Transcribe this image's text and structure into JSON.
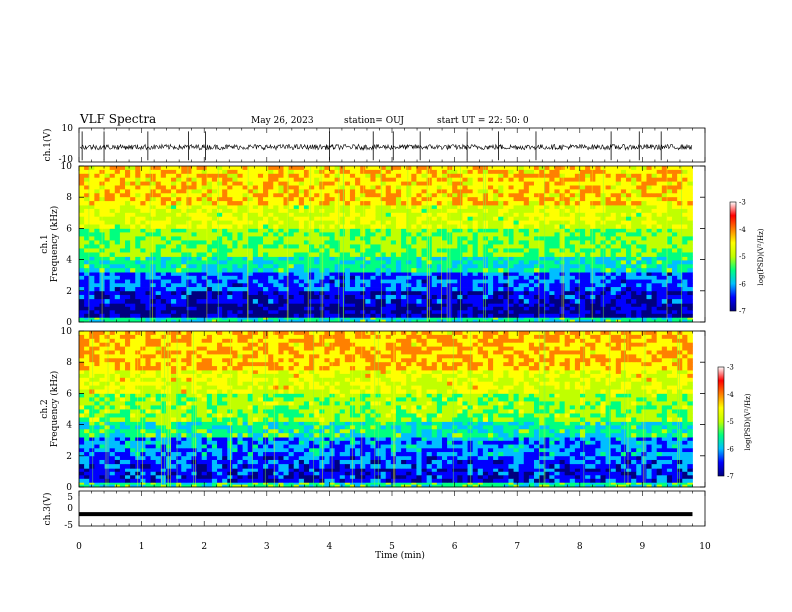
{
  "header": {
    "title": "VLF Spectra",
    "date": "May 26, 2023",
    "station": "station= OUJ",
    "start": "start  UT =   22: 50: 0"
  },
  "chart_data": [
    {
      "type": "line",
      "panel": "ch1-waveform",
      "ylabel": "ch.1(V)",
      "ylim": [
        -10,
        10
      ],
      "y_ticks": [
        "10",
        "-10"
      ],
      "x": [
        0,
        0.5,
        1,
        1.5,
        2,
        2.5,
        3,
        3.5,
        4,
        4.5,
        5,
        5.5,
        6,
        6.5,
        7,
        7.5,
        8,
        8.5,
        9,
        9.5,
        9.8
      ],
      "values": [
        -1,
        -1.5,
        -1,
        -1.2,
        -1,
        -1.4,
        -1,
        -1.1,
        -1.3,
        -1,
        -1.5,
        -1,
        -1.2,
        -1,
        -1.3,
        -1.1,
        -1,
        -1.4,
        -1,
        -1.2,
        -1
      ],
      "bursts": [
        0.05,
        0.4,
        1.1,
        1.75,
        2.02,
        4.0,
        4.7,
        5.02,
        5.45,
        6.2,
        6.7,
        7.3,
        8.5,
        8.95,
        9.3
      ],
      "xlim": [
        0,
        10
      ]
    },
    {
      "type": "heatmap",
      "panel": "ch1-spectrogram",
      "ylabel_line1": "ch.1",
      "ylabel_line2": "Frequency  (kHz)",
      "ylim": [
        0,
        10
      ],
      "y_ticks": [
        "0",
        "2",
        "4",
        "6",
        "8",
        "10"
      ],
      "xlim": [
        0,
        10
      ],
      "colorbar": {
        "label": "log(PSD)(V²/Hz)",
        "range": [
          -7,
          -3
        ],
        "ticks": [
          "-3",
          "-4",
          "-5",
          "-6",
          "-7"
        ],
        "colors": [
          "#00007f",
          "#0000ff",
          "#00bfff",
          "#00ff80",
          "#c0ff00",
          "#ffff00",
          "#ff8000",
          "#ff0000",
          "#ffffff"
        ]
      },
      "band_levels": [
        {
          "f": [
            0,
            0.3
          ],
          "log_psd": -5.2
        },
        {
          "f": [
            0.3,
            1.2
          ],
          "log_psd": -6.6
        },
        {
          "f": [
            1.2,
            2.0
          ],
          "log_psd": -6.3
        },
        {
          "f": [
            2.0,
            3.2
          ],
          "log_psd": -5.9
        },
        {
          "f": [
            3.2,
            4.2
          ],
          "log_psd": -5.2
        },
        {
          "f": [
            4.2,
            6.0
          ],
          "log_psd": -4.7
        },
        {
          "f": [
            6.0,
            7.5
          ],
          "log_psd": -4.2
        },
        {
          "f": [
            7.5,
            10.0
          ],
          "log_psd": -3.7
        }
      ]
    },
    {
      "type": "heatmap",
      "panel": "ch2-spectrogram",
      "ylabel_line1": "ch.2",
      "ylabel_line2": "Frequency  (kHz)",
      "ylim": [
        0,
        10
      ],
      "y_ticks": [
        "0",
        "2",
        "4",
        "6",
        "8",
        "10"
      ],
      "xlim": [
        0,
        10
      ],
      "colorbar": {
        "label": "log(PSD)(V²/Hz)",
        "range": [
          -7,
          -3
        ],
        "ticks": [
          "-3",
          "-4",
          "-5",
          "-6",
          "-7"
        ],
        "colors": [
          "#00007f",
          "#0000ff",
          "#00bfff",
          "#00ff80",
          "#c0ff00",
          "#ffff00",
          "#ff8000",
          "#ff0000",
          "#ffffff"
        ]
      },
      "band_levels": [
        {
          "f": [
            0,
            0.3
          ],
          "log_psd": -5.0
        },
        {
          "f": [
            0.3,
            1.2
          ],
          "log_psd": -6.2
        },
        {
          "f": [
            1.2,
            2.0
          ],
          "log_psd": -6.0
        },
        {
          "f": [
            2.0,
            3.2
          ],
          "log_psd": -5.7
        },
        {
          "f": [
            3.2,
            4.2
          ],
          "log_psd": -5.1
        },
        {
          "f": [
            4.2,
            6.0
          ],
          "log_psd": -4.6
        },
        {
          "f": [
            6.0,
            7.5
          ],
          "log_psd": -4.1
        },
        {
          "f": [
            7.5,
            10.0
          ],
          "log_psd": -3.6
        }
      ]
    },
    {
      "type": "line",
      "panel": "ch3-waveform",
      "ylabel": "ch.3(V)",
      "ylim": [
        -5,
        5
      ],
      "y_ticks": [
        "5",
        "0",
        "-5"
      ],
      "x": [
        0,
        9.8
      ],
      "values": [
        -1.6,
        -1.6
      ],
      "xlim": [
        0,
        10
      ],
      "xlabel": "Time  (min)",
      "x_ticks": [
        "0",
        "1",
        "2",
        "3",
        "4",
        "5",
        "6",
        "7",
        "8",
        "9",
        "10"
      ]
    }
  ]
}
